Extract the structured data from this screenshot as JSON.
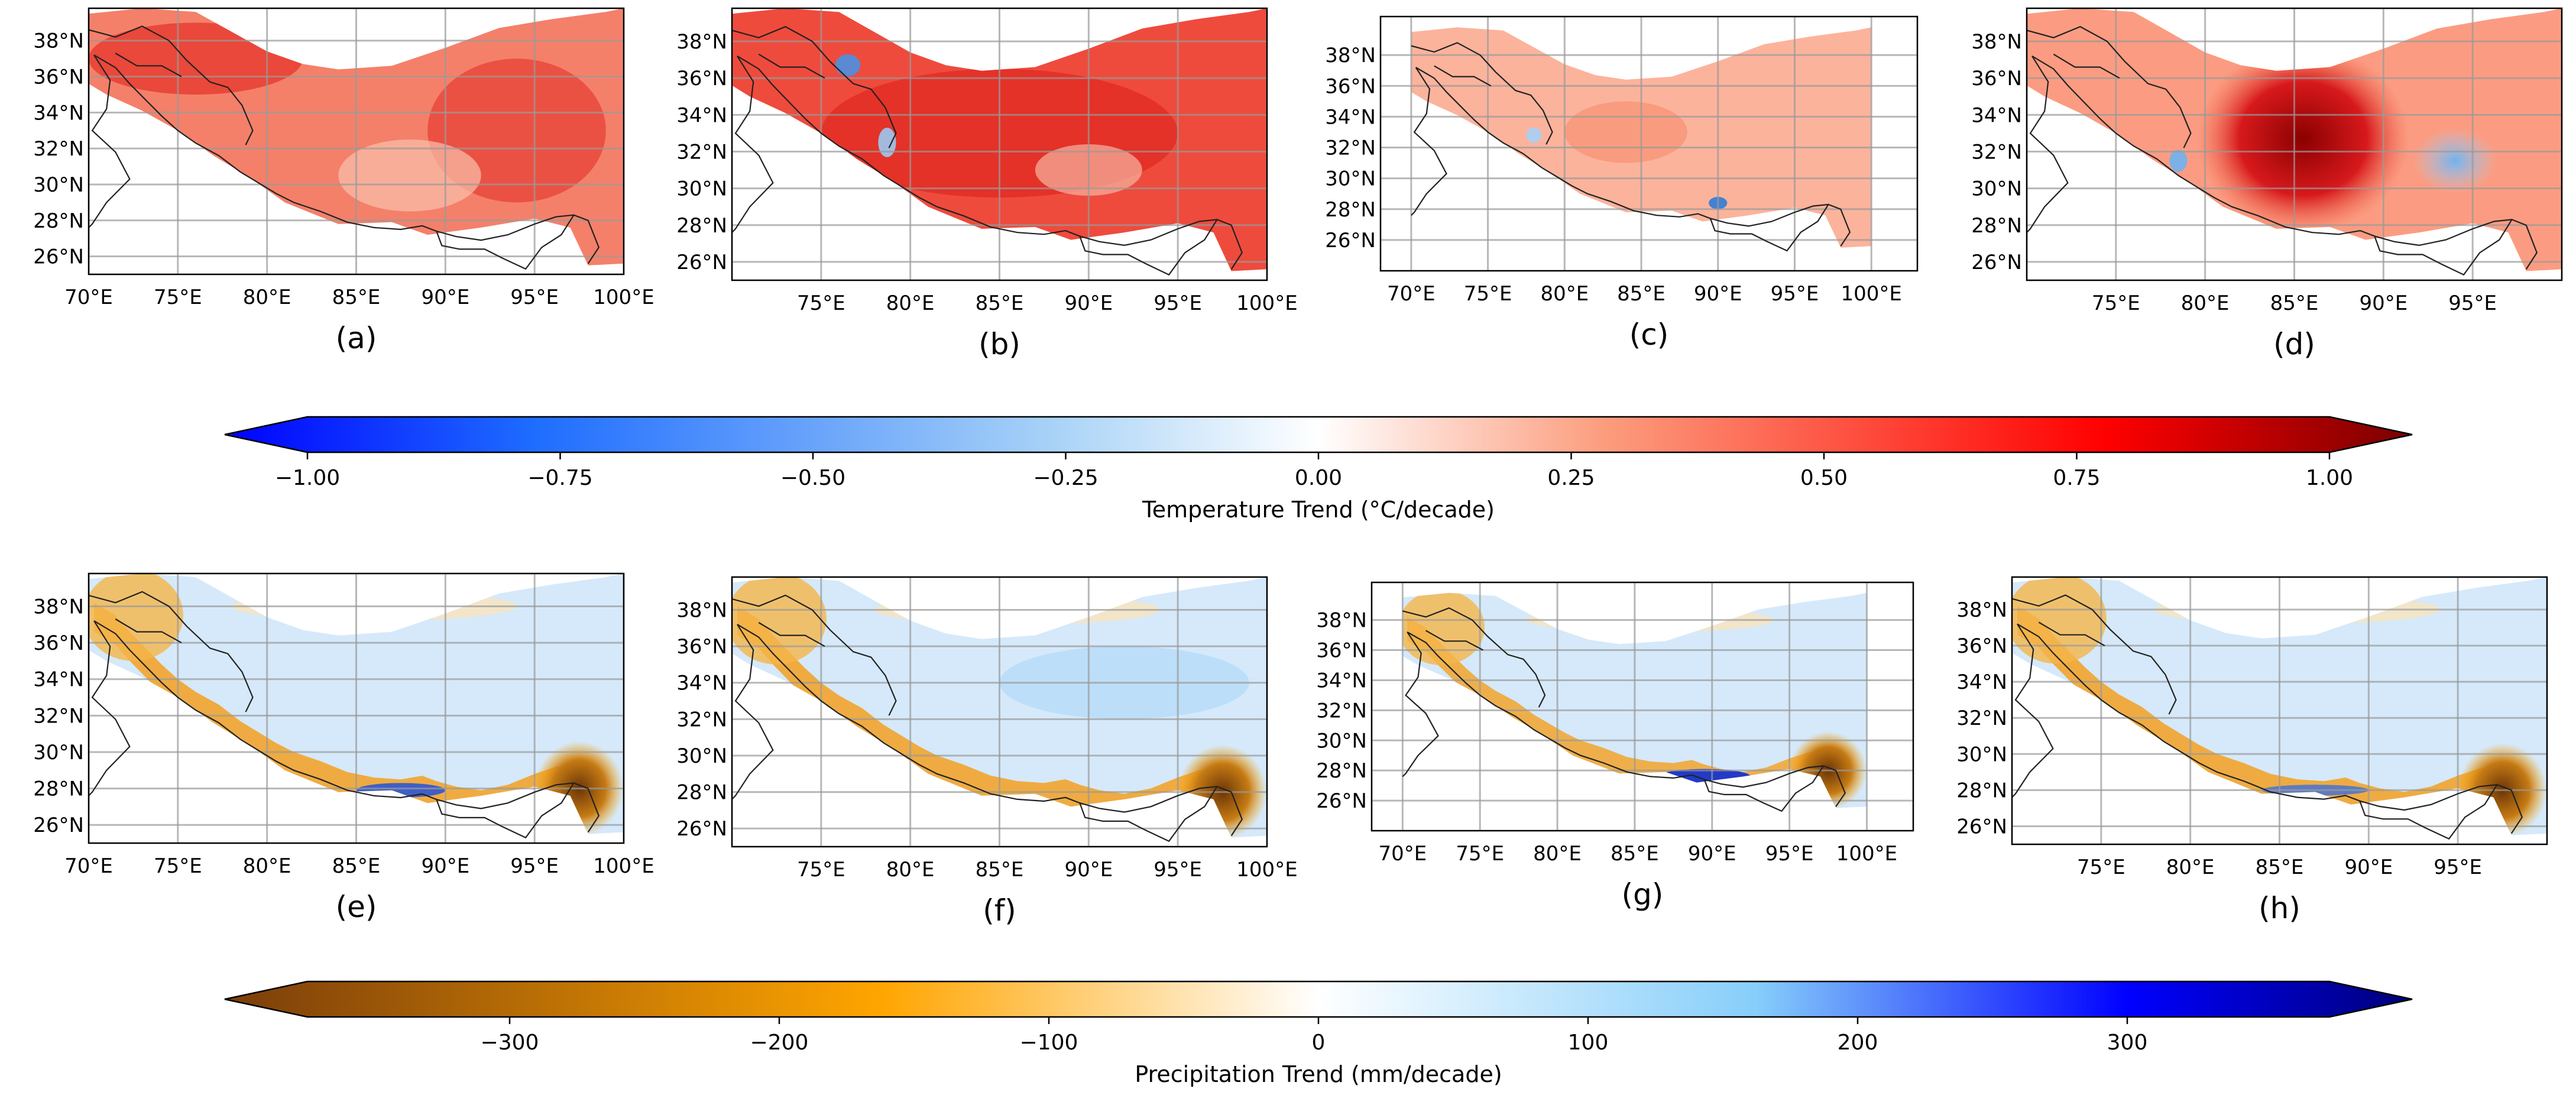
{
  "panels": [
    {
      "id": "a",
      "label": "(a)",
      "xticks": [
        "70°E",
        "75°E",
        "80°E",
        "85°E",
        "90°E",
        "95°E",
        "100°E"
      ],
      "yticks": [
        "38°N",
        "36°N",
        "34°N",
        "32°N",
        "30°N",
        "28°N",
        "26°N"
      ],
      "variable": "temperature"
    },
    {
      "id": "b",
      "label": "(b)",
      "xticks": [
        "75°E",
        "80°E",
        "85°E",
        "90°E",
        "95°E",
        "100°E"
      ],
      "yticks": [
        "38°N",
        "36°N",
        "34°N",
        "32°N",
        "30°N",
        "28°N",
        "26°N"
      ],
      "variable": "temperature"
    },
    {
      "id": "c",
      "label": "(c)",
      "xticks": [
        "70°E",
        "75°E",
        "80°E",
        "85°E",
        "90°E",
        "95°E",
        "100°E"
      ],
      "yticks": [
        "38°N",
        "36°N",
        "34°N",
        "32°N",
        "30°N",
        "28°N",
        "26°N"
      ],
      "variable": "temperature"
    },
    {
      "id": "d",
      "label": "(d)",
      "xticks": [
        "75°E",
        "80°E",
        "85°E",
        "90°E",
        "95°E"
      ],
      "yticks": [
        "38°N",
        "36°N",
        "34°N",
        "32°N",
        "30°N",
        "28°N",
        "26°N"
      ],
      "variable": "temperature"
    },
    {
      "id": "e",
      "label": "(e)",
      "xticks": [
        "70°E",
        "75°E",
        "80°E",
        "85°E",
        "90°E",
        "95°E",
        "100°E"
      ],
      "yticks": [
        "38°N",
        "36°N",
        "34°N",
        "32°N",
        "30°N",
        "28°N",
        "26°N"
      ],
      "variable": "precipitation"
    },
    {
      "id": "f",
      "label": "(f)",
      "xticks": [
        "75°E",
        "80°E",
        "85°E",
        "90°E",
        "95°E",
        "100°E"
      ],
      "yticks": [
        "38°N",
        "36°N",
        "34°N",
        "32°N",
        "30°N",
        "28°N",
        "26°N"
      ],
      "variable": "precipitation"
    },
    {
      "id": "g",
      "label": "(g)",
      "xticks": [
        "70°E",
        "75°E",
        "80°E",
        "85°E",
        "90°E",
        "95°E",
        "100°E"
      ],
      "yticks": [
        "38°N",
        "36°N",
        "34°N",
        "32°N",
        "30°N",
        "28°N",
        "26°N"
      ],
      "variable": "precipitation"
    },
    {
      "id": "h",
      "label": "(h)",
      "xticks": [
        "75°E",
        "80°E",
        "85°E",
        "90°E",
        "95°E"
      ],
      "yticks": [
        "38°N",
        "36°N",
        "34°N",
        "32°N",
        "30°N",
        "28°N",
        "26°N"
      ],
      "variable": "precipitation"
    }
  ],
  "colorbars": {
    "temperature": {
      "title": "Temperature Trend (°C/decade)",
      "ticks": [
        "−1.00",
        "−0.75",
        "−0.50",
        "−0.25",
        "0.00",
        "0.25",
        "0.50",
        "0.75",
        "1.00"
      ],
      "range": [
        -1.0,
        1.0
      ],
      "colors": [
        "#0000ff",
        "#ffffff",
        "#ff0000",
        "#7a0000"
      ],
      "extend": "both"
    },
    "precipitation": {
      "title": "Precipitation Trend (mm/decade)",
      "ticks": [
        "−300",
        "−200",
        "−100",
        "0",
        "100",
        "200",
        "300"
      ],
      "range": [
        -375,
        375
      ],
      "colors": [
        "#7a3d0a",
        "#ffa500",
        "#ffffff",
        "#87cefa",
        "#0000ff",
        "#00007a"
      ],
      "extend": "both"
    }
  }
}
